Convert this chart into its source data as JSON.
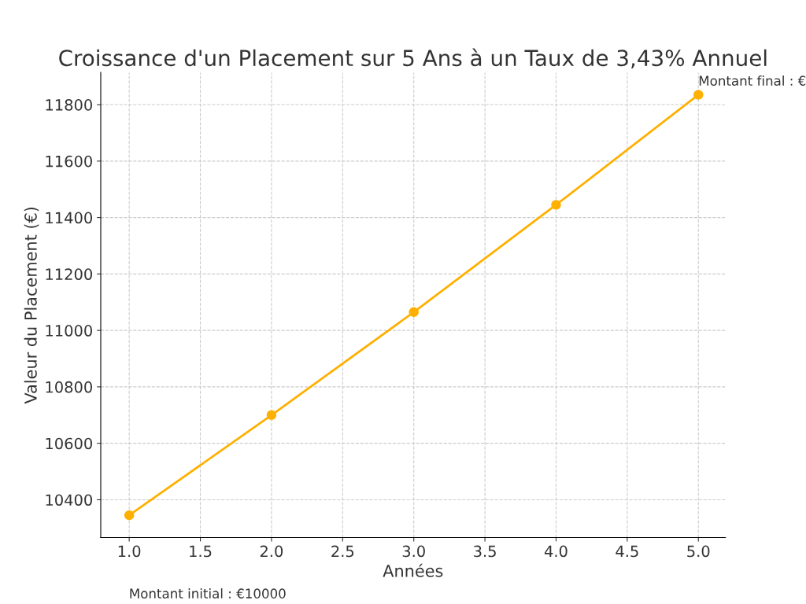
{
  "chart_data": {
    "type": "line",
    "title": "Croissance d'un Placement sur 5 Ans à un Taux de 3,43% Annuel",
    "xlabel": "Années",
    "ylabel": "Valeur du Placement (€)",
    "x": [
      1,
      2,
      3,
      4,
      5
    ],
    "series": [
      {
        "color": "#ffb000",
        "values": [
          10345,
          10700,
          11065,
          11445,
          11835
        ]
      }
    ],
    "xlim": [
      0.8,
      5.19
    ],
    "xticks": [
      {
        "value": 1,
        "label": "1.0"
      },
      {
        "value": 1.5,
        "label": "1.5"
      },
      {
        "value": 2,
        "label": "2.0"
      },
      {
        "value": 2.5,
        "label": "2.5"
      },
      {
        "value": 3,
        "label": "3.0"
      },
      {
        "value": 3.5,
        "label": "3.5"
      },
      {
        "value": 4,
        "label": "4.0"
      },
      {
        "value": 4.5,
        "label": "4.5"
      },
      {
        "value": 5,
        "label": "5.0"
      }
    ],
    "ylim": [
      10266,
      11914
    ],
    "yticks": [
      10400,
      10600,
      10800,
      11000,
      11200,
      11400,
      11600,
      11800
    ],
    "grid": true,
    "marker": "circle",
    "line_style": "solid",
    "annotations": [
      {
        "text": "Montant final : €",
        "x": 5,
        "y": 11835
      },
      "Montant initial : €10000"
    ]
  }
}
